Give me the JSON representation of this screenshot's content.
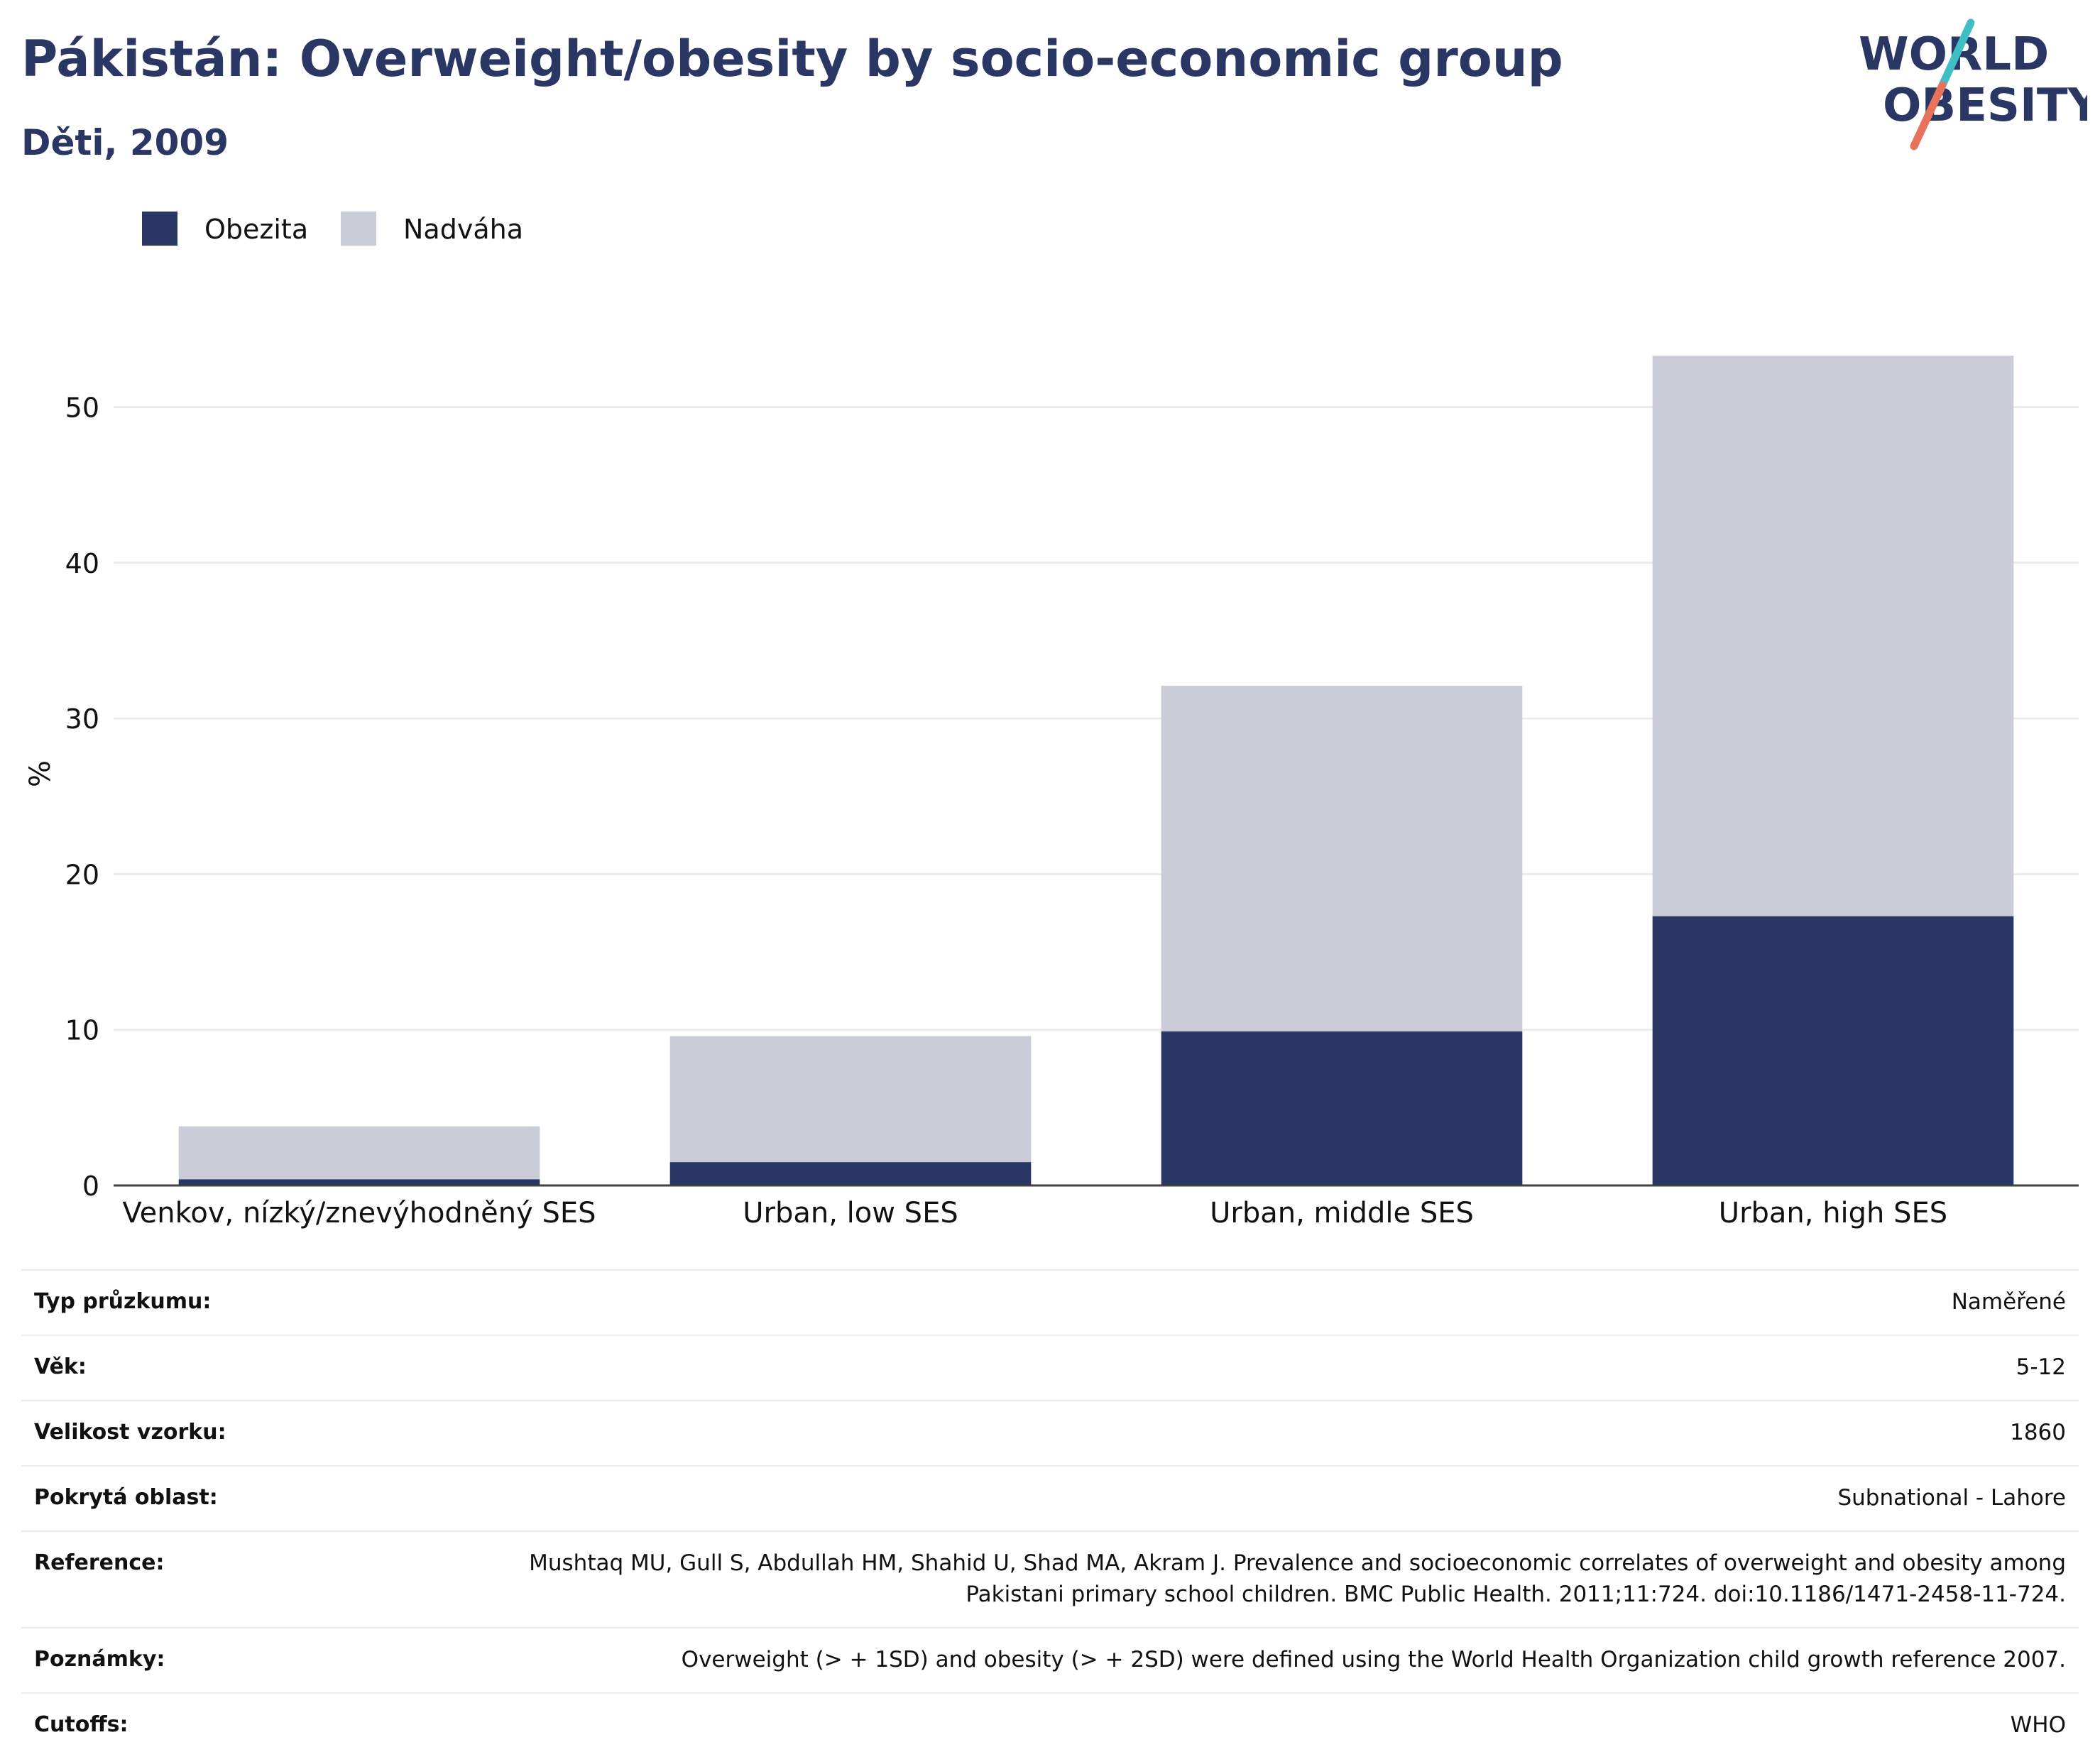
{
  "header": {
    "title": "Pákistán: Overweight/obesity by socio-economic group",
    "subtitle": "Děti, 2009"
  },
  "logo": {
    "line1": "WORLD",
    "line2": "OBESITY",
    "colors": {
      "text": "#2a3663",
      "slash_top": "#3fbfc4",
      "slash_bottom": "#e8735a"
    }
  },
  "chart_data": {
    "type": "bar",
    "stacked": true,
    "categories": [
      "Venkov, nízký/znevýhodněný SES",
      "Urban, low SES",
      "Urban, middle SES",
      "Urban, high SES"
    ],
    "series": [
      {
        "name": "Obezita",
        "color": "#2a3663",
        "values": [
          0.4,
          1.5,
          9.9,
          17.3
        ]
      },
      {
        "name": "Nadváha",
        "color": "#cacdd8",
        "values": [
          3.4,
          8.1,
          22.2,
          36.0
        ]
      }
    ],
    "ylabel": "%",
    "ylim": [
      0,
      57
    ],
    "yticks": [
      0,
      10,
      20,
      30,
      40,
      50
    ],
    "grid": true,
    "legend_position": "top-left"
  },
  "meta": [
    {
      "key": "Typ průzkumu:",
      "value": "Naměřené"
    },
    {
      "key": "Věk:",
      "value": "5-12"
    },
    {
      "key": "Velikost vzorku:",
      "value": "1860"
    },
    {
      "key": "Pokrytá oblast:",
      "value": "Subnational - Lahore"
    },
    {
      "key": "Reference:",
      "value": "Mushtaq MU, Gull S, Abdullah HM, Shahid U, Shad MA, Akram J. Prevalence and socioeconomic correlates of overweight and obesity among Pakistani primary school children. BMC Public Health. 2011;11:724. doi:10.1186/1471-2458-11-724."
    },
    {
      "key": "Poznámky:",
      "value": "Overweight (> + 1SD) and obesity (> + 2SD) were defined using the World Health Organization child growth reference 2007."
    },
    {
      "key": "Cutoffs:",
      "value": "WHO"
    }
  ]
}
